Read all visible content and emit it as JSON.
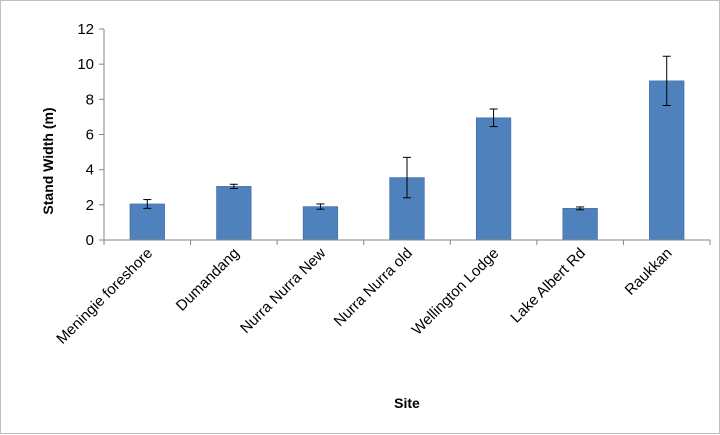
{
  "chart_data": {
    "type": "bar",
    "title": "",
    "xlabel": "Site",
    "ylabel": "Stand Width (m)",
    "ylim": [
      0,
      12
    ],
    "yticks": [
      0,
      2,
      4,
      6,
      8,
      10,
      12
    ],
    "grid": false,
    "legend": "none",
    "categories": [
      "Meningie foreshore",
      "Dumandang",
      "Nurra Nurra New",
      "Nurra Nurra old",
      "Wellington Lodge",
      "Lake Albert Rd",
      "Raukkan"
    ],
    "series": [
      {
        "values": [
          2.05,
          3.05,
          1.9,
          3.55,
          6.95,
          1.8,
          9.05
        ],
        "error": [
          0.25,
          0.12,
          0.15,
          1.15,
          0.5,
          0.08,
          1.4
        ]
      }
    ],
    "colors": {
      "bar": "#4f81bd",
      "bar_edge": "#3a6aa5",
      "axis": "#868686",
      "error_bar": "#000000"
    }
  }
}
